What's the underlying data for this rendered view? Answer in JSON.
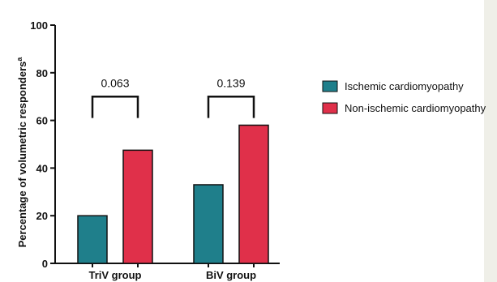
{
  "chart_data": {
    "type": "bar",
    "categories": [
      "TriV group",
      "BiV group"
    ],
    "series": [
      {
        "name": "Ischemic cardiomyopathy",
        "values": [
          20,
          33
        ],
        "color": "#1f7f8b"
      },
      {
        "name": "Non-ischemic cardiomyopathy",
        "values": [
          47.5,
          58
        ],
        "color": "#e0304a"
      }
    ],
    "ylabel": "Percentage of volumetric responders",
    "ylabel_superscript": "a",
    "xlabel": "",
    "ylim": [
      0,
      100
    ],
    "yticks": [
      0,
      20,
      40,
      60,
      80,
      100
    ],
    "pvalues": [
      "0.063",
      "0.139"
    ],
    "legend_position": "right"
  }
}
